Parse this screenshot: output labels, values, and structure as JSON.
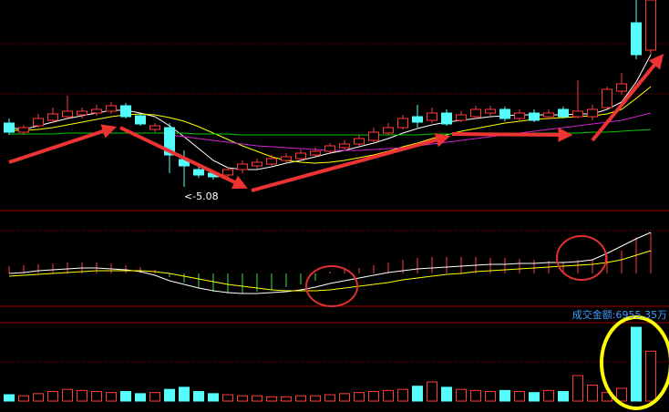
{
  "chart_data": [
    {
      "type": "candlestick",
      "annotation": "<-5.08",
      "ylim": [
        4.83,
        7.13
      ],
      "up_color": "#ff3c3c",
      "down_color": "#54fcfc",
      "open": [
        5.78,
        5.68,
        5.75,
        5.81,
        5.85,
        5.87,
        5.89,
        5.91,
        5.97,
        5.86,
        5.71,
        5.73,
        5.38,
        5.27,
        5.23,
        5.21,
        5.27,
        5.31,
        5.33,
        5.37,
        5.39,
        5.43,
        5.47,
        5.51,
        5.55,
        5.59,
        5.67,
        5.73,
        5.85,
        5.81,
        5.89,
        5.81,
        5.85,
        5.89,
        5.93,
        5.83,
        5.89,
        5.85,
        5.93,
        5.85,
        5.85,
        5.95,
        6.13,
        6.88,
        6.58
      ],
      "close": [
        5.68,
        5.73,
        5.83,
        5.88,
        5.91,
        5.91,
        5.93,
        5.97,
        5.85,
        5.77,
        5.75,
        5.43,
        5.31,
        5.21,
        5.19,
        5.27,
        5.33,
        5.35,
        5.39,
        5.41,
        5.45,
        5.47,
        5.53,
        5.55,
        5.61,
        5.68,
        5.73,
        5.83,
        5.79,
        5.89,
        5.77,
        5.87,
        5.93,
        5.93,
        5.83,
        5.89,
        5.81,
        5.89,
        5.85,
        5.91,
        5.93,
        6.15,
        6.21,
        6.53,
        7.13
      ],
      "high": [
        5.83,
        5.76,
        5.88,
        5.95,
        6.08,
        5.95,
        5.98,
        6.01,
        6.0,
        5.89,
        5.78,
        5.78,
        5.48,
        5.31,
        5.26,
        5.3,
        5.37,
        5.39,
        5.43,
        5.45,
        5.49,
        5.51,
        5.56,
        5.59,
        5.65,
        5.73,
        5.78,
        5.87,
        5.98,
        5.95,
        5.93,
        5.91,
        5.97,
        5.97,
        5.96,
        5.93,
        5.93,
        5.93,
        5.96,
        6.25,
        5.98,
        6.18,
        6.33,
        7.13,
        7.13
      ],
      "low": [
        5.65,
        5.65,
        5.73,
        5.78,
        5.83,
        5.83,
        5.86,
        5.88,
        5.83,
        5.75,
        5.68,
        5.23,
        5.08,
        5.18,
        5.16,
        5.18,
        5.23,
        5.28,
        5.31,
        5.35,
        5.37,
        5.41,
        5.45,
        5.49,
        5.53,
        5.57,
        5.65,
        5.71,
        5.73,
        5.78,
        5.75,
        5.79,
        5.83,
        5.86,
        5.8,
        5.81,
        5.79,
        5.83,
        5.83,
        5.83,
        5.81,
        5.93,
        6.09,
        6.48,
        6.53
      ],
      "series": [
        {
          "color": "#ffffff",
          "values": [
            5.73,
            5.71,
            5.75,
            5.79,
            5.83,
            5.86,
            5.89,
            5.92,
            5.92,
            5.89,
            5.85,
            5.75,
            5.63,
            5.5,
            5.37,
            5.29,
            5.27,
            5.27,
            5.3,
            5.34,
            5.37,
            5.41,
            5.45,
            5.48,
            5.52,
            5.56,
            5.61,
            5.67,
            5.72,
            5.76,
            5.79,
            5.81,
            5.83,
            5.85,
            5.86,
            5.87,
            5.87,
            5.87,
            5.87,
            5.88,
            5.88,
            5.93,
            6.01,
            6.23,
            6.53
          ]
        },
        {
          "color": "#ffff00",
          "values": [
            5.7,
            5.7,
            5.71,
            5.73,
            5.76,
            5.79,
            5.82,
            5.85,
            5.87,
            5.88,
            5.87,
            5.84,
            5.8,
            5.74,
            5.67,
            5.6,
            5.53,
            5.47,
            5.41,
            5.37,
            5.35,
            5.34,
            5.35,
            5.37,
            5.4,
            5.43,
            5.47,
            5.52,
            5.56,
            5.61,
            5.65,
            5.69,
            5.72,
            5.75,
            5.78,
            5.8,
            5.82,
            5.83,
            5.84,
            5.85,
            5.86,
            5.88,
            5.93,
            6.05,
            6.18
          ]
        },
        {
          "color": "#d020d0",
          "values": [
            null,
            null,
            null,
            null,
            null,
            null,
            null,
            null,
            null,
            null,
            null,
            5.65,
            5.63,
            5.61,
            5.59,
            5.57,
            5.55,
            5.53,
            5.52,
            5.51,
            5.5,
            5.49,
            5.48,
            5.48,
            5.48,
            5.49,
            5.5,
            5.51,
            5.53,
            5.55,
            5.57,
            5.59,
            5.61,
            5.63,
            5.65,
            5.67,
            5.69,
            5.71,
            5.73,
            5.75,
            5.77,
            5.79,
            5.81,
            5.85,
            5.89
          ]
        },
        {
          "color": "#00c800",
          "values": [
            5.66,
            5.66,
            5.66,
            5.66,
            5.67,
            5.67,
            5.67,
            5.67,
            5.67,
            5.67,
            5.67,
            5.67,
            5.67,
            5.66,
            5.66,
            5.66,
            5.65,
            5.65,
            5.65,
            5.65,
            5.65,
            5.65,
            5.65,
            5.65,
            5.65,
            5.65,
            5.65,
            5.65,
            5.65,
            5.66,
            5.66,
            5.66,
            5.66,
            5.66,
            5.66,
            5.66,
            5.67,
            5.67,
            5.67,
            5.67,
            5.68,
            5.68,
            5.69,
            5.7,
            5.71
          ]
        }
      ]
    },
    {
      "type": "macd",
      "ylim": [
        -0.035,
        0.065
      ],
      "up_color": "#ff3c3c",
      "down_color": "#40e040",
      "values": [
        0.008,
        0.009,
        0.01,
        0.011,
        0.012,
        0.012,
        0.012,
        0.011,
        0.009,
        0.007,
        0.004,
        -0.004,
        -0.01,
        -0.016,
        -0.02,
        -0.022,
        -0.022,
        -0.02,
        -0.018,
        -0.015,
        -0.012,
        -0.008,
        0.002,
        0.004,
        0.006,
        0.009,
        0.012,
        0.015,
        0.017,
        0.018,
        0.018,
        0.018,
        0.018,
        0.017,
        0.017,
        0.016,
        0.015,
        0.014,
        0.013,
        0.015,
        0.016,
        0.02,
        0.025,
        0.04,
        0.045
      ],
      "series": [
        {
          "color": "#ffffff",
          "values": [
            0.0,
            0.001,
            0.003,
            0.004,
            0.005,
            0.006,
            0.006,
            0.005,
            0.004,
            0.002,
            -0.002,
            -0.008,
            -0.012,
            -0.016,
            -0.019,
            -0.021,
            -0.022,
            -0.022,
            -0.021,
            -0.02,
            -0.018,
            -0.015,
            -0.011,
            -0.008,
            -0.005,
            -0.002,
            0.001,
            0.003,
            0.005,
            0.006,
            0.007,
            0.008,
            0.009,
            0.01,
            0.01,
            0.011,
            0.011,
            0.012,
            0.012,
            0.013,
            0.015,
            0.022,
            0.03,
            0.038,
            0.045
          ]
        },
        {
          "color": "#ffff00",
          "values": [
            -0.003,
            -0.002,
            -0.001,
            0.0,
            0.001,
            0.002,
            0.003,
            0.003,
            0.003,
            0.003,
            0.002,
            0.0,
            -0.003,
            -0.006,
            -0.009,
            -0.012,
            -0.014,
            -0.016,
            -0.018,
            -0.019,
            -0.019,
            -0.019,
            -0.018,
            -0.016,
            -0.014,
            -0.012,
            -0.01,
            -0.007,
            -0.005,
            -0.003,
            -0.001,
            0.0,
            0.002,
            0.003,
            0.004,
            0.005,
            0.006,
            0.007,
            0.008,
            0.009,
            0.01,
            0.012,
            0.015,
            0.02,
            0.025
          ]
        }
      ]
    },
    {
      "type": "volume",
      "title": "成交金额:6955.35万",
      "title_color": "#3c9cff",
      "ylim": [
        0,
        7300
      ],
      "up_color": "#ff3c3c",
      "down_color": "#54fcfc",
      "values": [
        600,
        500,
        700,
        900,
        1100,
        1000,
        900,
        800,
        900,
        700,
        800,
        1100,
        1300,
        900,
        700,
        600,
        500,
        500,
        400,
        400,
        500,
        500,
        600,
        700,
        800,
        900,
        1000,
        1100,
        1400,
        1800,
        1300,
        1100,
        1000,
        900,
        1000,
        900,
        800,
        1000,
        900,
        2400,
        1500,
        800,
        1200,
        6955.35,
        4700
      ]
    }
  ]
}
